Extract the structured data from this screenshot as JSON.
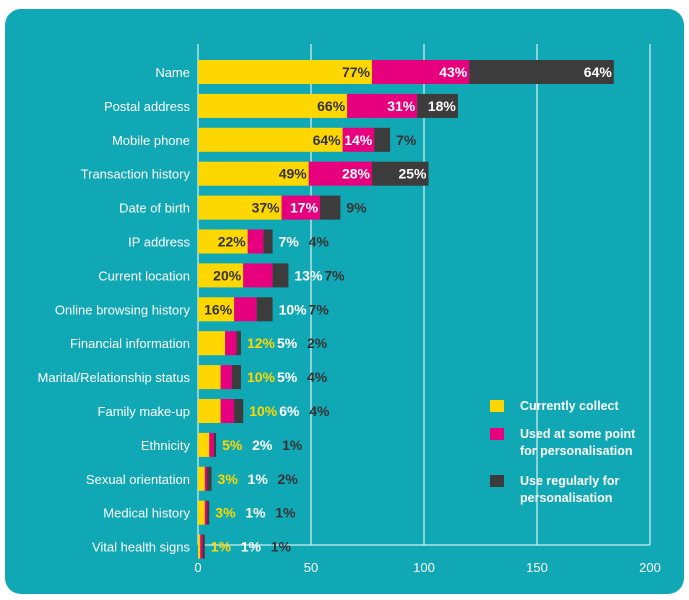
{
  "chart_data": {
    "type": "bar",
    "orientation": "horizontal",
    "stacked": true,
    "categories": [
      "Name",
      "Postal address",
      "Mobile phone",
      "Transaction history",
      "Date of birth",
      "IP address",
      "Current location",
      "Online browsing history",
      "Financial information",
      "Marital/Relationship status",
      "Family make-up",
      "Ethnicity",
      "Sexual orientation",
      "Medical history",
      "Vital health signs"
    ],
    "series": [
      {
        "name": "Currently collect",
        "color": "#ffd700",
        "values": [
          77,
          66,
          64,
          49,
          37,
          22,
          20,
          16,
          12,
          10,
          10,
          5,
          3,
          3,
          1
        ]
      },
      {
        "name": "Used at some point for personalisation",
        "color": "#e6007e",
        "values": [
          43,
          31,
          14,
          28,
          17,
          7,
          13,
          10,
          5,
          5,
          6,
          2,
          1,
          1,
          1
        ]
      },
      {
        "name": "Use regularly for personalisation",
        "color": "#3c3c3c",
        "values": [
          64,
          18,
          7,
          25,
          9,
          4,
          7,
          7,
          2,
          4,
          4,
          1,
          2,
          1,
          1
        ]
      }
    ],
    "value_labels": [
      [
        "77%",
        "43%",
        "64%"
      ],
      [
        "66%",
        "31%",
        "18%"
      ],
      [
        "64%",
        "14%",
        "7%"
      ],
      [
        "49%",
        "28%",
        "25%"
      ],
      [
        "37%",
        "17%",
        "9%"
      ],
      [
        "22%",
        "7%",
        "4%"
      ],
      [
        "20%",
        "13%",
        "7%"
      ],
      [
        "16%",
        "10%",
        "7%"
      ],
      [
        "12%",
        "5%",
        "2%"
      ],
      [
        "10%",
        "5%",
        "4%"
      ],
      [
        "10%",
        "6%",
        "4%"
      ],
      [
        "5%",
        "2%",
        "1%"
      ],
      [
        "3%",
        "1%",
        "2%"
      ],
      [
        "3%",
        "1%",
        "1%"
      ],
      [
        "1%",
        "1%",
        "1%"
      ]
    ],
    "xlim": [
      0,
      200
    ],
    "xticks": [
      0,
      50,
      100,
      150,
      200
    ],
    "tick_labels": [
      "0",
      "50",
      "100",
      "150",
      "200"
    ],
    "grid": true,
    "legend_position": "right",
    "title": "",
    "xlabel": "",
    "ylabel": ""
  },
  "colors": {
    "background": "#11a8b5",
    "grid": "#ffffff",
    "text": "#ffffff",
    "dark_text": "#333333"
  }
}
